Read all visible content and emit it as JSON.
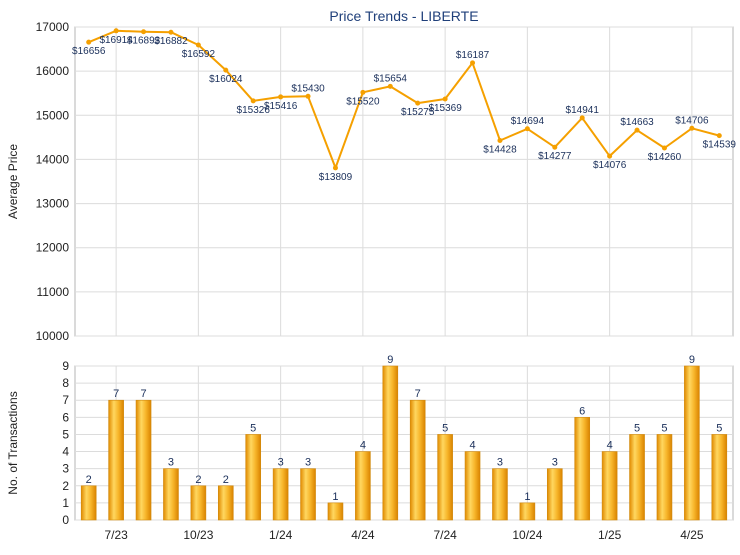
{
  "chart_data": [
    {
      "type": "line",
      "title": "Price Trends - LIBERTE",
      "xlabel": "",
      "ylabel": "Average Price",
      "ylim": [
        10000,
        17000
      ],
      "yticks": [
        10000,
        11000,
        12000,
        13000,
        14000,
        15000,
        16000,
        17000
      ],
      "grid": true,
      "color": "#f5a000",
      "series": [
        {
          "values": [
            16656,
            16914,
            16893,
            16882,
            16592,
            16024,
            15326,
            15416,
            15430,
            13809,
            15520,
            15654,
            15275,
            15369,
            16187,
            14428,
            14694,
            14277,
            14941,
            14076,
            14663,
            14260,
            14706,
            14539
          ],
          "labels": [
            "$16656",
            "$16914",
            "$16893",
            "$16882",
            "$16592",
            "$16024",
            "$15326",
            "$15416",
            "$15430",
            "$13809",
            "$15520",
            "$15654",
            "$15275",
            "$15369",
            "$16187",
            "$14428",
            "$14694",
            "$14277",
            "$14941",
            "$14076",
            "$14663",
            "$14260",
            "$14706",
            "$14539"
          ]
        }
      ]
    },
    {
      "type": "bar",
      "title": "",
      "xlabel": "",
      "ylabel": "No. of Transactions",
      "ylim": [
        0,
        9
      ],
      "yticks": [
        0,
        1,
        2,
        3,
        4,
        5,
        6,
        7,
        8,
        9
      ],
      "grid": true,
      "color": "#f2a516",
      "categories": [
        "",
        "7/23",
        "",
        "",
        "10/23",
        "",
        "",
        "1/24",
        "",
        "",
        "4/24",
        "",
        "",
        "7/24",
        "",
        "",
        "10/24",
        "",
        "",
        "1/25",
        "",
        "",
        "4/25",
        ""
      ],
      "series": [
        {
          "values": [
            2,
            7,
            7,
            3,
            2,
            2,
            5,
            3,
            3,
            1,
            4,
            9,
            7,
            5,
            4,
            3,
            1,
            3,
            6,
            4,
            5,
            5,
            9,
            5
          ]
        }
      ]
    }
  ]
}
